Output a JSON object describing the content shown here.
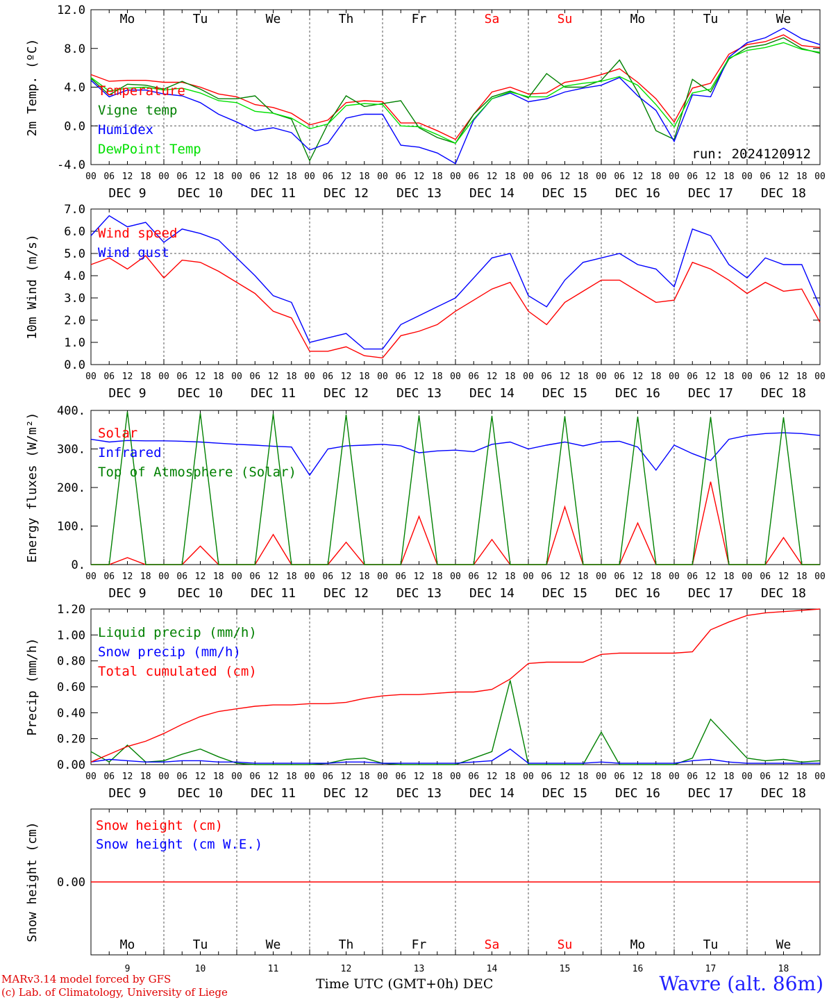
{
  "run_label": "run: 2024120912",
  "station": "Wavre (alt. 86m)",
  "credit_line1": "MARv3.14 model forced by GFS",
  "credit_line2": "(c) Lab. of Climatology, University of Liege",
  "x_axis_title": "Time UTC (GMT+0h) DEC",
  "days": [
    {
      "weekday": "Mo",
      "date": "DEC  9",
      "num": "9",
      "weekend": false
    },
    {
      "weekday": "Tu",
      "date": "DEC 10",
      "num": "10",
      "weekend": false
    },
    {
      "weekday": "We",
      "date": "DEC 11",
      "num": "11",
      "weekend": false
    },
    {
      "weekday": "Th",
      "date": "DEC 12",
      "num": "12",
      "weekend": false
    },
    {
      "weekday": "Fr",
      "date": "DEC 13",
      "num": "13",
      "weekend": false
    },
    {
      "weekday": "Sa",
      "date": "DEC 14",
      "num": "14",
      "weekend": true
    },
    {
      "weekday": "Su",
      "date": "DEC 15",
      "num": "15",
      "weekend": true
    },
    {
      "weekday": "Mo",
      "date": "DEC 16",
      "num": "16",
      "weekend": false
    },
    {
      "weekday": "Tu",
      "date": "DEC 17",
      "num": "17",
      "weekend": false
    },
    {
      "weekday": "We",
      "date": "DEC 18",
      "num": "18",
      "weekend": false
    }
  ],
  "hour_ticks": [
    "00",
    "06",
    "12",
    "18"
  ],
  "colors": {
    "red": "#ff0000",
    "green": "#008000",
    "blue": "#0000ff",
    "lightgreen": "#00e000",
    "weekend": "#ff0000"
  },
  "chart_data": [
    {
      "type": "line",
      "ylabel": "2m Temp. (ºC)",
      "ylim": [
        -4,
        12
      ],
      "yticks": [
        "-4.0",
        "0.0",
        "4.0",
        "8.0",
        "12.0"
      ],
      "ytick_values": [
        -4,
        0,
        4,
        8,
        12
      ],
      "ref_line": 0,
      "x_hours_step": 6,
      "series": [
        {
          "name": "Temperature",
          "color": "red",
          "values": [
            5.3,
            4.6,
            4.7,
            4.7,
            4.5,
            4.5,
            4.0,
            3.3,
            3.0,
            2.2,
            1.9,
            1.3,
            0.1,
            0.6,
            2.4,
            2.6,
            2.5,
            0.3,
            0.3,
            -0.5,
            -1.4,
            1.2,
            3.5,
            4.0,
            3.3,
            3.4,
            4.5,
            4.8,
            5.3,
            5.9,
            4.5,
            2.8,
            0.4,
            3.9,
            4.4,
            7.4,
            8.4,
            8.7,
            9.4,
            8.3,
            8.1
          ]
        },
        {
          "name": "Vigne temp",
          "color": "green",
          "values": [
            4.9,
            3.2,
            4.3,
            4.2,
            3.8,
            4.6,
            3.8,
            2.8,
            2.8,
            3.1,
            1.3,
            0.7,
            -3.6,
            0.2,
            3.1,
            2.0,
            2.3,
            2.6,
            -0.2,
            -1.2,
            -1.8,
            1.2,
            3.0,
            3.6,
            2.9,
            5.4,
            4.0,
            4.0,
            4.7,
            6.8,
            3.5,
            -0.5,
            -1.4,
            4.8,
            3.5,
            6.9,
            8.1,
            8.4,
            9.1,
            8.0,
            7.5
          ]
        },
        {
          "name": "Humidex",
          "color": "blue",
          "values": [
            4.7,
            3.0,
            3.7,
            3.7,
            3.3,
            3.1,
            2.4,
            1.2,
            0.4,
            -0.5,
            -0.2,
            -0.7,
            -2.5,
            -1.8,
            0.8,
            1.2,
            1.2,
            -2.0,
            -2.2,
            -2.8,
            -3.9,
            0.6,
            2.8,
            3.4,
            2.5,
            2.8,
            3.5,
            3.9,
            4.2,
            5.0,
            3.1,
            1.6,
            -1.6,
            3.2,
            3.0,
            7.1,
            8.6,
            9.1,
            10.1,
            9.0,
            8.4
          ]
        },
        {
          "name": "DewPoint Temp",
          "color": "lightgreen",
          "values": [
            5.0,
            3.6,
            3.9,
            4.0,
            3.7,
            3.9,
            3.4,
            2.6,
            2.4,
            1.5,
            1.3,
            0.8,
            -0.3,
            0.2,
            2.1,
            2.3,
            2.2,
            0.0,
            -0.1,
            -0.9,
            -1.8,
            0.7,
            2.8,
            3.5,
            3.0,
            3.0,
            4.1,
            4.4,
            4.6,
            5.1,
            4.2,
            2.2,
            -0.1,
            3.4,
            3.8,
            7.0,
            7.8,
            8.1,
            8.6,
            7.9,
            7.6
          ]
        }
      ]
    },
    {
      "type": "line",
      "ylabel": "10m Wind (m/s)",
      "ylim": [
        0,
        7
      ],
      "yticks": [
        "0.0",
        "1.0",
        "2.0",
        "3.0",
        "4.0",
        "5.0",
        "6.0",
        "7.0"
      ],
      "ytick_values": [
        0,
        1,
        2,
        3,
        4,
        5,
        6,
        7
      ],
      "ref_line": 5,
      "x_hours_step": 6,
      "series": [
        {
          "name": "Wind speed",
          "color": "red",
          "values": [
            4.5,
            4.8,
            4.3,
            4.9,
            3.9,
            4.7,
            4.6,
            4.2,
            3.7,
            3.2,
            2.4,
            2.1,
            0.6,
            0.6,
            0.8,
            0.4,
            0.3,
            1.3,
            1.5,
            1.8,
            2.4,
            2.9,
            3.4,
            3.7,
            2.4,
            1.8,
            2.8,
            3.3,
            3.8,
            3.8,
            3.3,
            2.8,
            2.9,
            4.6,
            4.3,
            3.8,
            3.2,
            3.7,
            3.3,
            3.4,
            1.9
          ]
        },
        {
          "name": "Wind gust",
          "color": "blue",
          "values": [
            5.8,
            6.7,
            6.2,
            6.4,
            5.5,
            6.1,
            5.9,
            5.6,
            4.8,
            4.0,
            3.1,
            2.8,
            1.0,
            1.2,
            1.4,
            0.7,
            0.7,
            1.8,
            2.2,
            2.6,
            3.0,
            3.9,
            4.8,
            5.0,
            3.1,
            2.6,
            3.8,
            4.6,
            4.8,
            5.0,
            4.5,
            4.3,
            3.5,
            6.1,
            5.8,
            4.5,
            3.9,
            4.8,
            4.5,
            4.5,
            2.6
          ]
        }
      ]
    },
    {
      "type": "line",
      "ylabel": "Energy fluxes (W/m²)",
      "ylim": [
        0,
        400
      ],
      "yticks": [
        "0.",
        "100.",
        "200.",
        "300.",
        "400."
      ],
      "ytick_values": [
        0,
        100,
        200,
        300,
        400
      ],
      "x_hours_step": 6,
      "series": [
        {
          "name": "Solar",
          "color": "red",
          "values": [
            0,
            0,
            18,
            0,
            0,
            0,
            48,
            0,
            0,
            0,
            78,
            0,
            0,
            0,
            58,
            0,
            0,
            0,
            125,
            0,
            0,
            0,
            65,
            0,
            0,
            0,
            150,
            0,
            0,
            0,
            108,
            0,
            0,
            0,
            215,
            0,
            0,
            0,
            70,
            0,
            0
          ]
        },
        {
          "name": "Infrared",
          "color": "blue",
          "values": [
            325,
            318,
            322,
            321,
            321,
            320,
            318,
            315,
            312,
            310,
            307,
            305,
            232,
            300,
            308,
            310,
            312,
            308,
            290,
            295,
            297,
            293,
            312,
            318,
            300,
            310,
            318,
            308,
            318,
            320,
            305,
            245,
            310,
            288,
            270,
            325,
            335,
            340,
            342,
            340,
            335
          ]
        },
        {
          "name": "Top of Atmosphere (Solar)",
          "color": "green",
          "values": [
            0,
            0,
            397,
            0,
            0,
            0,
            393,
            0,
            0,
            0,
            391,
            0,
            0,
            0,
            389,
            0,
            0,
            0,
            387,
            0,
            0,
            0,
            386,
            0,
            0,
            0,
            385,
            0,
            0,
            0,
            384,
            0,
            0,
            0,
            383,
            0,
            0,
            0,
            382,
            0,
            0
          ]
        }
      ]
    },
    {
      "type": "line",
      "ylabel": "Precip (mm/h)",
      "ylim": [
        0,
        1.2
      ],
      "yticks": [
        "0.00",
        "0.20",
        "0.40",
        "0.60",
        "0.80",
        "1.00",
        "1.20"
      ],
      "ytick_values": [
        0,
        0.2,
        0.4,
        0.6,
        0.8,
        1.0,
        1.2
      ],
      "x_hours_step": 6,
      "series": [
        {
          "name": "Liquid precip (mm/h)",
          "color": "green",
          "values": [
            0.1,
            0.02,
            0.15,
            0.02,
            0.03,
            0.08,
            0.12,
            0.06,
            0.01,
            0.0,
            0.0,
            0.0,
            0.0,
            0.01,
            0.04,
            0.05,
            0.01,
            0.0,
            0.0,
            0.0,
            0.0,
            0.05,
            0.1,
            0.65,
            0.0,
            0.0,
            0.0,
            0.0,
            0.25,
            0.0,
            0.0,
            0.0,
            0.0,
            0.05,
            0.35,
            0.2,
            0.05,
            0.03,
            0.04,
            0.02,
            0.03
          ]
        },
        {
          "name": "Snow precip (mm/h)",
          "color": "blue",
          "values": [
            0.02,
            0.04,
            0.03,
            0.02,
            0.02,
            0.03,
            0.03,
            0.02,
            0.02,
            0.01,
            0.01,
            0.01,
            0.01,
            0.01,
            0.02,
            0.02,
            0.01,
            0.01,
            0.01,
            0.01,
            0.01,
            0.02,
            0.03,
            0.12,
            0.01,
            0.01,
            0.01,
            0.01,
            0.02,
            0.01,
            0.01,
            0.01,
            0.01,
            0.03,
            0.04,
            0.02,
            0.01,
            0.01,
            0.01,
            0.01,
            0.01
          ]
        },
        {
          "name": "Total cumulated (cm)",
          "color": "red",
          "values": [
            0.02,
            0.08,
            0.14,
            0.18,
            0.24,
            0.31,
            0.37,
            0.41,
            0.43,
            0.45,
            0.46,
            0.46,
            0.47,
            0.47,
            0.48,
            0.51,
            0.53,
            0.54,
            0.54,
            0.55,
            0.56,
            0.56,
            0.58,
            0.66,
            0.78,
            0.79,
            0.79,
            0.79,
            0.85,
            0.86,
            0.86,
            0.86,
            0.86,
            0.87,
            1.04,
            1.1,
            1.15,
            1.17,
            1.18,
            1.19,
            1.2
          ]
        }
      ]
    },
    {
      "type": "line",
      "ylabel": "Snow height (cm)",
      "yticks": [
        "0.00"
      ],
      "ytick_values": [
        0
      ],
      "ylim": [
        -1,
        1
      ],
      "x_hours_step": 6,
      "series": [
        {
          "name": "Snow height (cm)",
          "color": "red",
          "values": [
            0,
            0,
            0,
            0,
            0,
            0,
            0,
            0,
            0,
            0,
            0,
            0,
            0,
            0,
            0,
            0,
            0,
            0,
            0,
            0,
            0,
            0,
            0,
            0,
            0,
            0,
            0,
            0,
            0,
            0,
            0,
            0,
            0,
            0,
            0,
            0,
            0,
            0,
            0,
            0,
            0
          ]
        },
        {
          "name": "Snow height (cm W.E.)",
          "color": "blue",
          "values": []
        }
      ]
    }
  ]
}
